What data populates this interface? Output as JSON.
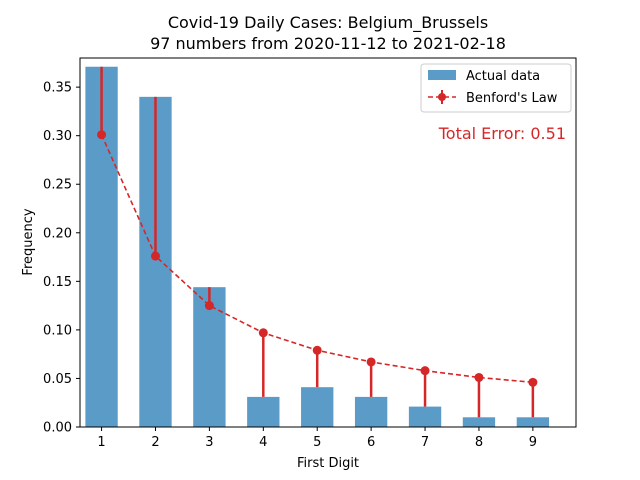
{
  "chart_data": {
    "type": "bar",
    "title": "Covid-19 Daily Cases: Belgium_Brussels",
    "subtitle": "97 numbers from 2020-11-12 to 2021-02-18",
    "xlabel": "First Digit",
    "ylabel": "Frequency",
    "categories": [
      "1",
      "2",
      "3",
      "4",
      "5",
      "6",
      "7",
      "8",
      "9"
    ],
    "ylim": [
      0,
      0.38
    ],
    "yticks": [
      "0.00",
      "0.05",
      "0.10",
      "0.15",
      "0.20",
      "0.25",
      "0.30",
      "0.35"
    ],
    "series": [
      {
        "name": "Actual data",
        "kind": "bar",
        "color": "#5b9bc8",
        "values": [
          0.371,
          0.34,
          0.144,
          0.031,
          0.041,
          0.031,
          0.021,
          0.01,
          0.01
        ]
      },
      {
        "name": "Benford's Law",
        "kind": "line-dashed-markers",
        "color": "#d62728",
        "values": [
          0.301,
          0.176,
          0.125,
          0.097,
          0.079,
          0.067,
          0.058,
          0.051,
          0.046
        ]
      }
    ],
    "annotation": "Total Error: 0.51",
    "legend_position": "top-right",
    "grid": false
  }
}
